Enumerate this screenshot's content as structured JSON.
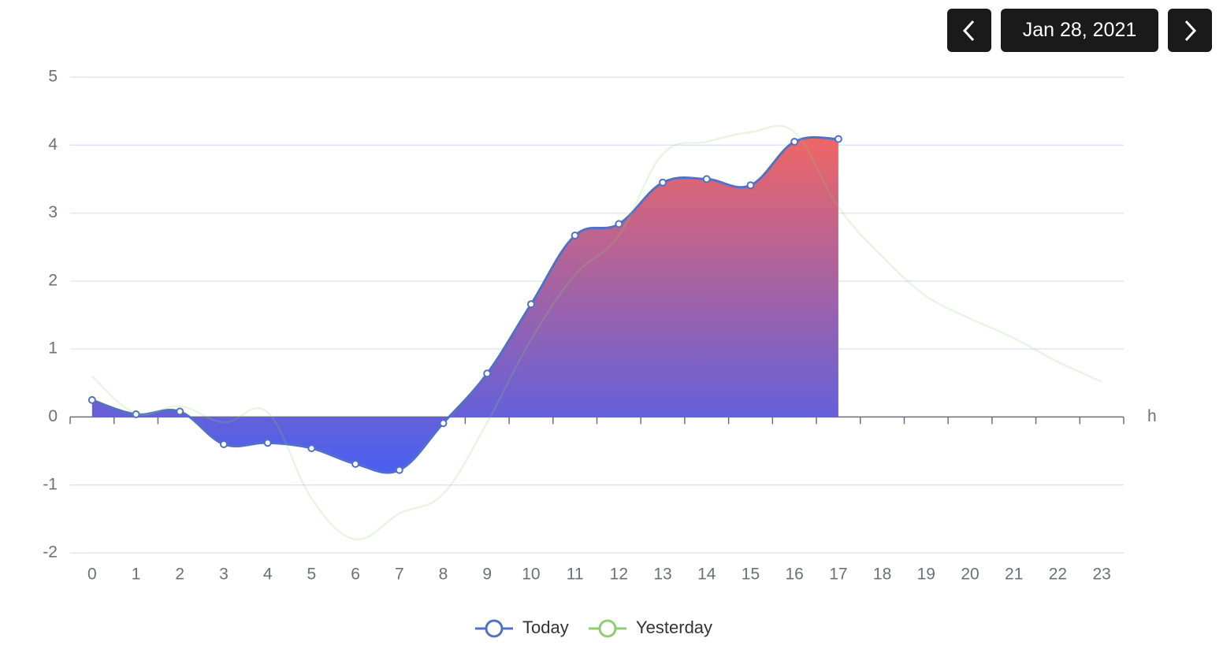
{
  "date_label": "Jan 28, 2021",
  "chart_data": {
    "type": "line",
    "x_label": "h",
    "categories": [
      "0",
      "1",
      "2",
      "3",
      "4",
      "5",
      "6",
      "7",
      "8",
      "9",
      "10",
      "11",
      "12",
      "13",
      "14",
      "15",
      "16",
      "17",
      "18",
      "19",
      "20",
      "21",
      "22",
      "23"
    ],
    "ylim": [
      -2,
      5
    ],
    "yticks": [
      -2,
      -1,
      0,
      1,
      2,
      3,
      4,
      5
    ],
    "grid": true,
    "series": [
      {
        "name": "Today",
        "color": "#5470c6",
        "area": true,
        "area_colors": [
          "#ee6666",
          "#4a5ff0"
        ],
        "values": [
          0.25,
          0.04,
          0.08,
          -0.4,
          -0.38,
          -0.46,
          -0.69,
          -0.78,
          -0.09,
          0.64,
          1.66,
          2.67,
          2.84,
          3.45,
          3.5,
          3.41,
          4.05,
          4.09,
          null,
          null,
          null,
          null,
          null,
          null
        ]
      },
      {
        "name": "Yesterday",
        "color": "#91cc75",
        "values": [
          0.6,
          0.05,
          0.16,
          -0.08,
          0.07,
          -1.2,
          -1.8,
          -1.42,
          -1.13,
          -0.08,
          1.14,
          2.09,
          2.67,
          3.87,
          4.05,
          4.19,
          4.19,
          3.09,
          2.36,
          1.78,
          1.45,
          1.16,
          0.81,
          0.52
        ]
      }
    ]
  }
}
